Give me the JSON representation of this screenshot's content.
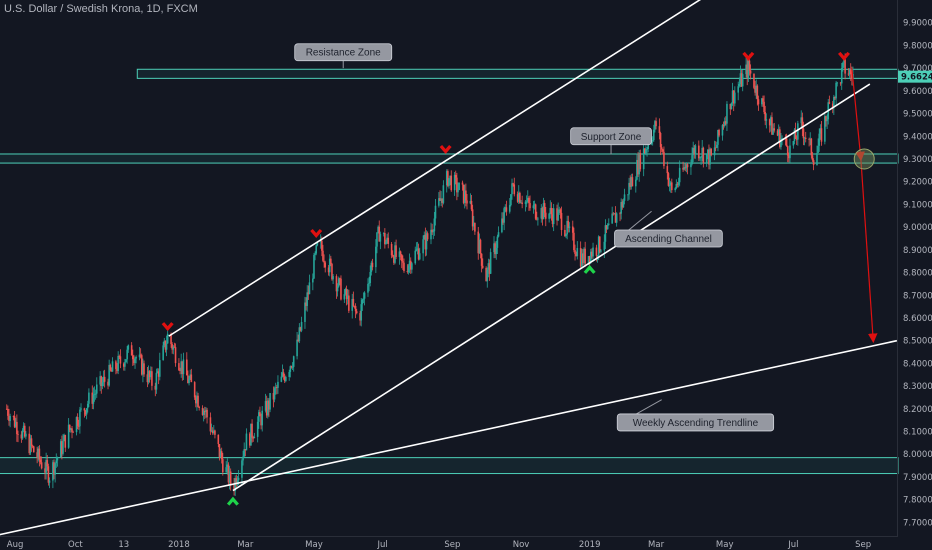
{
  "header": {
    "title": "U.S. Dollar / Swedish Krona, 1D, FXCM"
  },
  "chart_data": {
    "type": "candlestick",
    "instrument": "U.S. Dollar / Swedish Krona, 1D, FXCM",
    "ylim": [
      7.64,
      10.0
    ],
    "y_ticks": [
      "9.90000",
      "9.80000",
      "9.70000",
      "9.60000",
      "9.50000",
      "9.40000",
      "9.30000",
      "9.20000",
      "9.10000",
      "9.00000",
      "8.90000",
      "8.80000",
      "8.70000",
      "8.60000",
      "8.50000",
      "8.40000",
      "8.30000",
      "8.20000",
      "8.10000",
      "8.00000",
      "7.90000",
      "7.80000",
      "7.70000"
    ],
    "y_tick_values": [
      9.9,
      9.8,
      9.7,
      9.6,
      9.5,
      9.4,
      9.3,
      9.2,
      9.1,
      9.0,
      8.9,
      8.8,
      8.7,
      8.6,
      8.5,
      8.4,
      8.3,
      8.2,
      8.1,
      8.0,
      7.9,
      7.8,
      7.7
    ],
    "x_ticks": [
      "Aug",
      "Oct",
      "13",
      "2018",
      "Mar",
      "May",
      "Jul",
      "Sep",
      "Nov",
      "2019",
      "Mar",
      "May",
      "Jul",
      "Sep"
    ],
    "x_tick_dates": [
      "2017-08-01",
      "2017-10-01",
      "2017-11-13",
      "2018-01-01",
      "2018-03-01",
      "2018-05-01",
      "2018-07-01",
      "2018-09-01",
      "2018-11-01",
      "2019-01-01",
      "2019-03-01",
      "2019-05-01",
      "2019-07-01",
      "2019-09-01"
    ],
    "last_price": "9.66246",
    "last_price_value": 9.66246,
    "price_path": [
      [
        "2017-08-01",
        8.2
      ],
      [
        "2017-08-20",
        8.05
      ],
      [
        "2017-09-08",
        7.91
      ],
      [
        "2017-09-25",
        8.1
      ],
      [
        "2017-10-15",
        8.25
      ],
      [
        "2017-11-05",
        8.38
      ],
      [
        "2017-11-20",
        8.46
      ],
      [
        "2017-12-10",
        8.3
      ],
      [
        "2017-12-22",
        8.52
      ],
      [
        "2018-01-10",
        8.32
      ],
      [
        "2018-01-25",
        8.18
      ],
      [
        "2018-02-10",
        7.95
      ],
      [
        "2018-02-18",
        7.85
      ],
      [
        "2018-03-01",
        8.05
      ],
      [
        "2018-03-20",
        8.2
      ],
      [
        "2018-04-15",
        8.45
      ],
      [
        "2018-05-05",
        8.93
      ],
      [
        "2018-05-25",
        8.72
      ],
      [
        "2018-06-10",
        8.6
      ],
      [
        "2018-06-28",
        8.98
      ],
      [
        "2018-07-20",
        8.82
      ],
      [
        "2018-08-10",
        8.95
      ],
      [
        "2018-08-28",
        9.22
      ],
      [
        "2018-09-15",
        9.12
      ],
      [
        "2018-10-01",
        8.78
      ],
      [
        "2018-10-25",
        9.18
      ],
      [
        "2018-11-10",
        9.08
      ],
      [
        "2018-12-05",
        9.05
      ],
      [
        "2018-12-25",
        8.86
      ],
      [
        "2019-01-10",
        8.92
      ],
      [
        "2019-01-28",
        9.08
      ],
      [
        "2019-02-15",
        9.3
      ],
      [
        "2019-03-01",
        9.45
      ],
      [
        "2019-03-15",
        9.15
      ],
      [
        "2019-04-05",
        9.35
      ],
      [
        "2019-04-20",
        9.3
      ],
      [
        "2019-05-05",
        9.55
      ],
      [
        "2019-05-22",
        9.7
      ],
      [
        "2019-06-10",
        9.45
      ],
      [
        "2019-06-28",
        9.34
      ],
      [
        "2019-07-08",
        9.45
      ],
      [
        "2019-07-20",
        9.3
      ],
      [
        "2019-08-01",
        9.52
      ],
      [
        "2019-08-15",
        9.7
      ],
      [
        "2019-08-24",
        9.66
      ]
    ],
    "zones": [
      {
        "name": "Resistance Zone",
        "low": 9.655,
        "high": 9.695,
        "from": "2017-11-25"
      },
      {
        "name": "Support Zone",
        "low": 9.282,
        "high": 9.322,
        "from": "2017-07-20"
      },
      {
        "name": "",
        "low": 7.915,
        "high": 7.985,
        "from": "2017-07-20"
      }
    ],
    "lines": [
      {
        "name": "Ascending Channel (upper)",
        "p1": [
          "2017-12-23",
          8.52
        ],
        "p2": [
          "2019-05-01",
          10.07
        ]
      },
      {
        "name": "Ascending Channel (lower)",
        "p1": [
          "2018-02-18",
          7.84
        ],
        "p2": [
          "2019-09-07",
          9.63
        ]
      },
      {
        "name": "Weekly Ascending Trendline",
        "p1": [
          "2017-07-20",
          7.64
        ],
        "p2": [
          "2019-10-01",
          8.5
        ]
      }
    ],
    "annotations": [
      {
        "text": "Resistance Zone",
        "date": "2018-05-27",
        "price": 9.77,
        "pointer_price": 9.7
      },
      {
        "text": "Support Zone",
        "date": "2019-01-20",
        "price": 9.4,
        "pointer_price": 9.32
      },
      {
        "text": "Ascending Channel",
        "date": "2019-03-12",
        "price": 8.95,
        "pointer_date": "2019-02-25",
        "pointer_price": 9.07
      },
      {
        "text": "Weekly Ascending Trendline",
        "date": "2019-04-05",
        "price": 8.14,
        "pointer_date": "2019-03-06",
        "pointer_price": 8.24
      }
    ],
    "markers": [
      {
        "type": "down",
        "color": "#e01010",
        "date": "2017-12-22",
        "price": 8.52
      },
      {
        "type": "down",
        "color": "#e01010",
        "date": "2018-05-03",
        "price": 8.93
      },
      {
        "type": "down",
        "color": "#e01010",
        "date": "2018-08-26",
        "price": 9.3
      },
      {
        "type": "down",
        "color": "#e01010",
        "date": "2019-05-22",
        "price": 9.71
      },
      {
        "type": "down",
        "color": "#e01010",
        "date": "2019-08-15",
        "price": 9.71
      },
      {
        "type": "up",
        "color": "#1ed34a",
        "date": "2018-02-18",
        "price": 7.84
      },
      {
        "type": "up",
        "color": "#1ed34a",
        "date": "2019-01-01",
        "price": 8.86
      }
    ],
    "projection": {
      "color": "#e01010",
      "points": [
        [
          "2019-08-22",
          9.7
        ],
        [
          "2019-08-30",
          9.3
        ],
        [
          "2019-09-10",
          8.5
        ]
      ],
      "target_circle": [
        "2019-09-02",
        9.3
      ]
    },
    "colors": {
      "background": "#131722",
      "up": "#26a69a",
      "down": "#ef5350",
      "zone": "#4dd0b8",
      "line": "#ffffff",
      "grid": "#1e222d",
      "label_box": "#9598a1",
      "axis_text": "#b2b5be",
      "price_tag": "#4dd0b8"
    },
    "grid": false,
    "legend": "none"
  }
}
